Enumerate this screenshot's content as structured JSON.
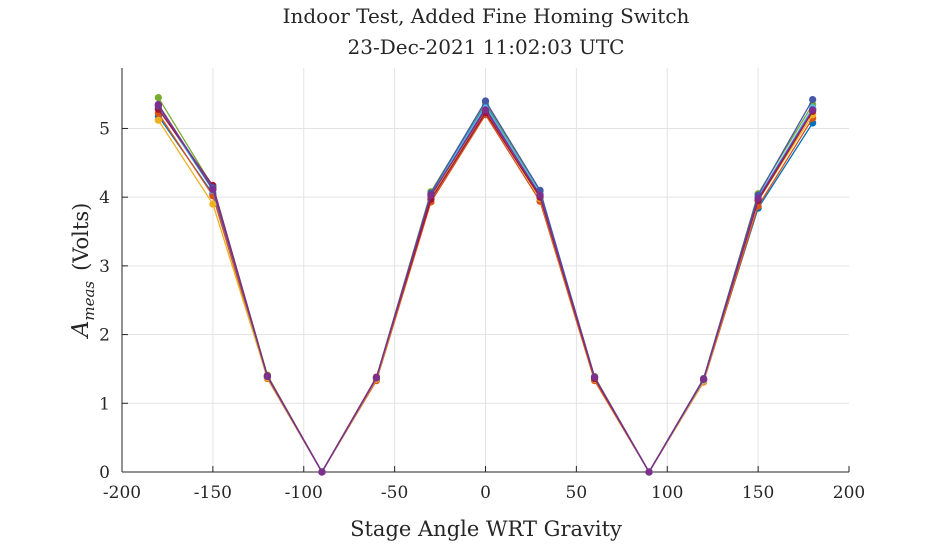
{
  "chart_data": {
    "type": "line",
    "title": "Indoor Test, Added Fine Homing Switch",
    "subtitle": "23-Dec-2021 11:02:03 UTC",
    "xlabel": "Stage Angle WRT Gravity",
    "ylabel_main": "A",
    "ylabel_sub": "meas",
    "ylabel_unit": "(Volts)",
    "xlim": [
      -200,
      200
    ],
    "ylim": [
      0,
      5.88
    ],
    "xticks": [
      -200,
      -150,
      -100,
      -50,
      0,
      50,
      100,
      150,
      200
    ],
    "yticks": [
      0,
      1,
      2,
      3,
      4,
      5
    ],
    "grid": true,
    "legend": "none",
    "x": [
      -180,
      -150,
      -120,
      -90,
      -60,
      -30,
      0,
      30,
      60,
      90,
      120,
      150,
      180
    ],
    "series": [
      {
        "color": "#0072BD",
        "values": [
          5.18,
          4.05,
          1.38,
          0,
          1.36,
          4.05,
          5.35,
          4.05,
          1.37,
          0,
          1.33,
          3.84,
          5.08
        ]
      },
      {
        "color": "#D95319",
        "values": [
          5.22,
          4.02,
          1.36,
          0,
          1.33,
          3.93,
          5.2,
          3.94,
          1.33,
          0,
          1.31,
          3.87,
          5.15
        ]
      },
      {
        "color": "#EDB120",
        "values": [
          5.12,
          3.9,
          1.37,
          0,
          1.35,
          4.0,
          5.25,
          3.98,
          1.35,
          0,
          1.32,
          3.95,
          5.2
        ]
      },
      {
        "color": "#7E2F8E",
        "values": [
          5.35,
          4.12,
          1.4,
          0,
          1.37,
          4.02,
          5.3,
          4.02,
          1.38,
          0,
          1.35,
          3.97,
          5.28
        ]
      },
      {
        "color": "#77AC30",
        "values": [
          5.45,
          4.15,
          1.41,
          0,
          1.38,
          4.08,
          5.38,
          4.08,
          1.39,
          0,
          1.36,
          4.05,
          5.35
        ]
      },
      {
        "color": "#4DBEEE",
        "values": [
          5.3,
          4.1,
          1.39,
          0,
          1.37,
          4.05,
          5.33,
          4.06,
          1.38,
          0,
          1.34,
          4.0,
          5.3
        ]
      },
      {
        "color": "#A2142F",
        "values": [
          5.28,
          4.17,
          1.4,
          0,
          1.38,
          3.97,
          5.23,
          4.0,
          1.36,
          0,
          1.35,
          3.95,
          5.25
        ]
      },
      {
        "color": "#4658A8",
        "values": [
          5.33,
          4.14,
          1.39,
          0,
          1.37,
          4.06,
          5.4,
          4.1,
          1.38,
          0,
          1.36,
          4.03,
          5.42
        ]
      },
      {
        "color": "#7E2F8E",
        "values": [
          5.34,
          4.11,
          1.39,
          0,
          1.37,
          4.03,
          5.27,
          4.03,
          1.38,
          0,
          1.35,
          3.98,
          5.27
        ]
      }
    ]
  }
}
